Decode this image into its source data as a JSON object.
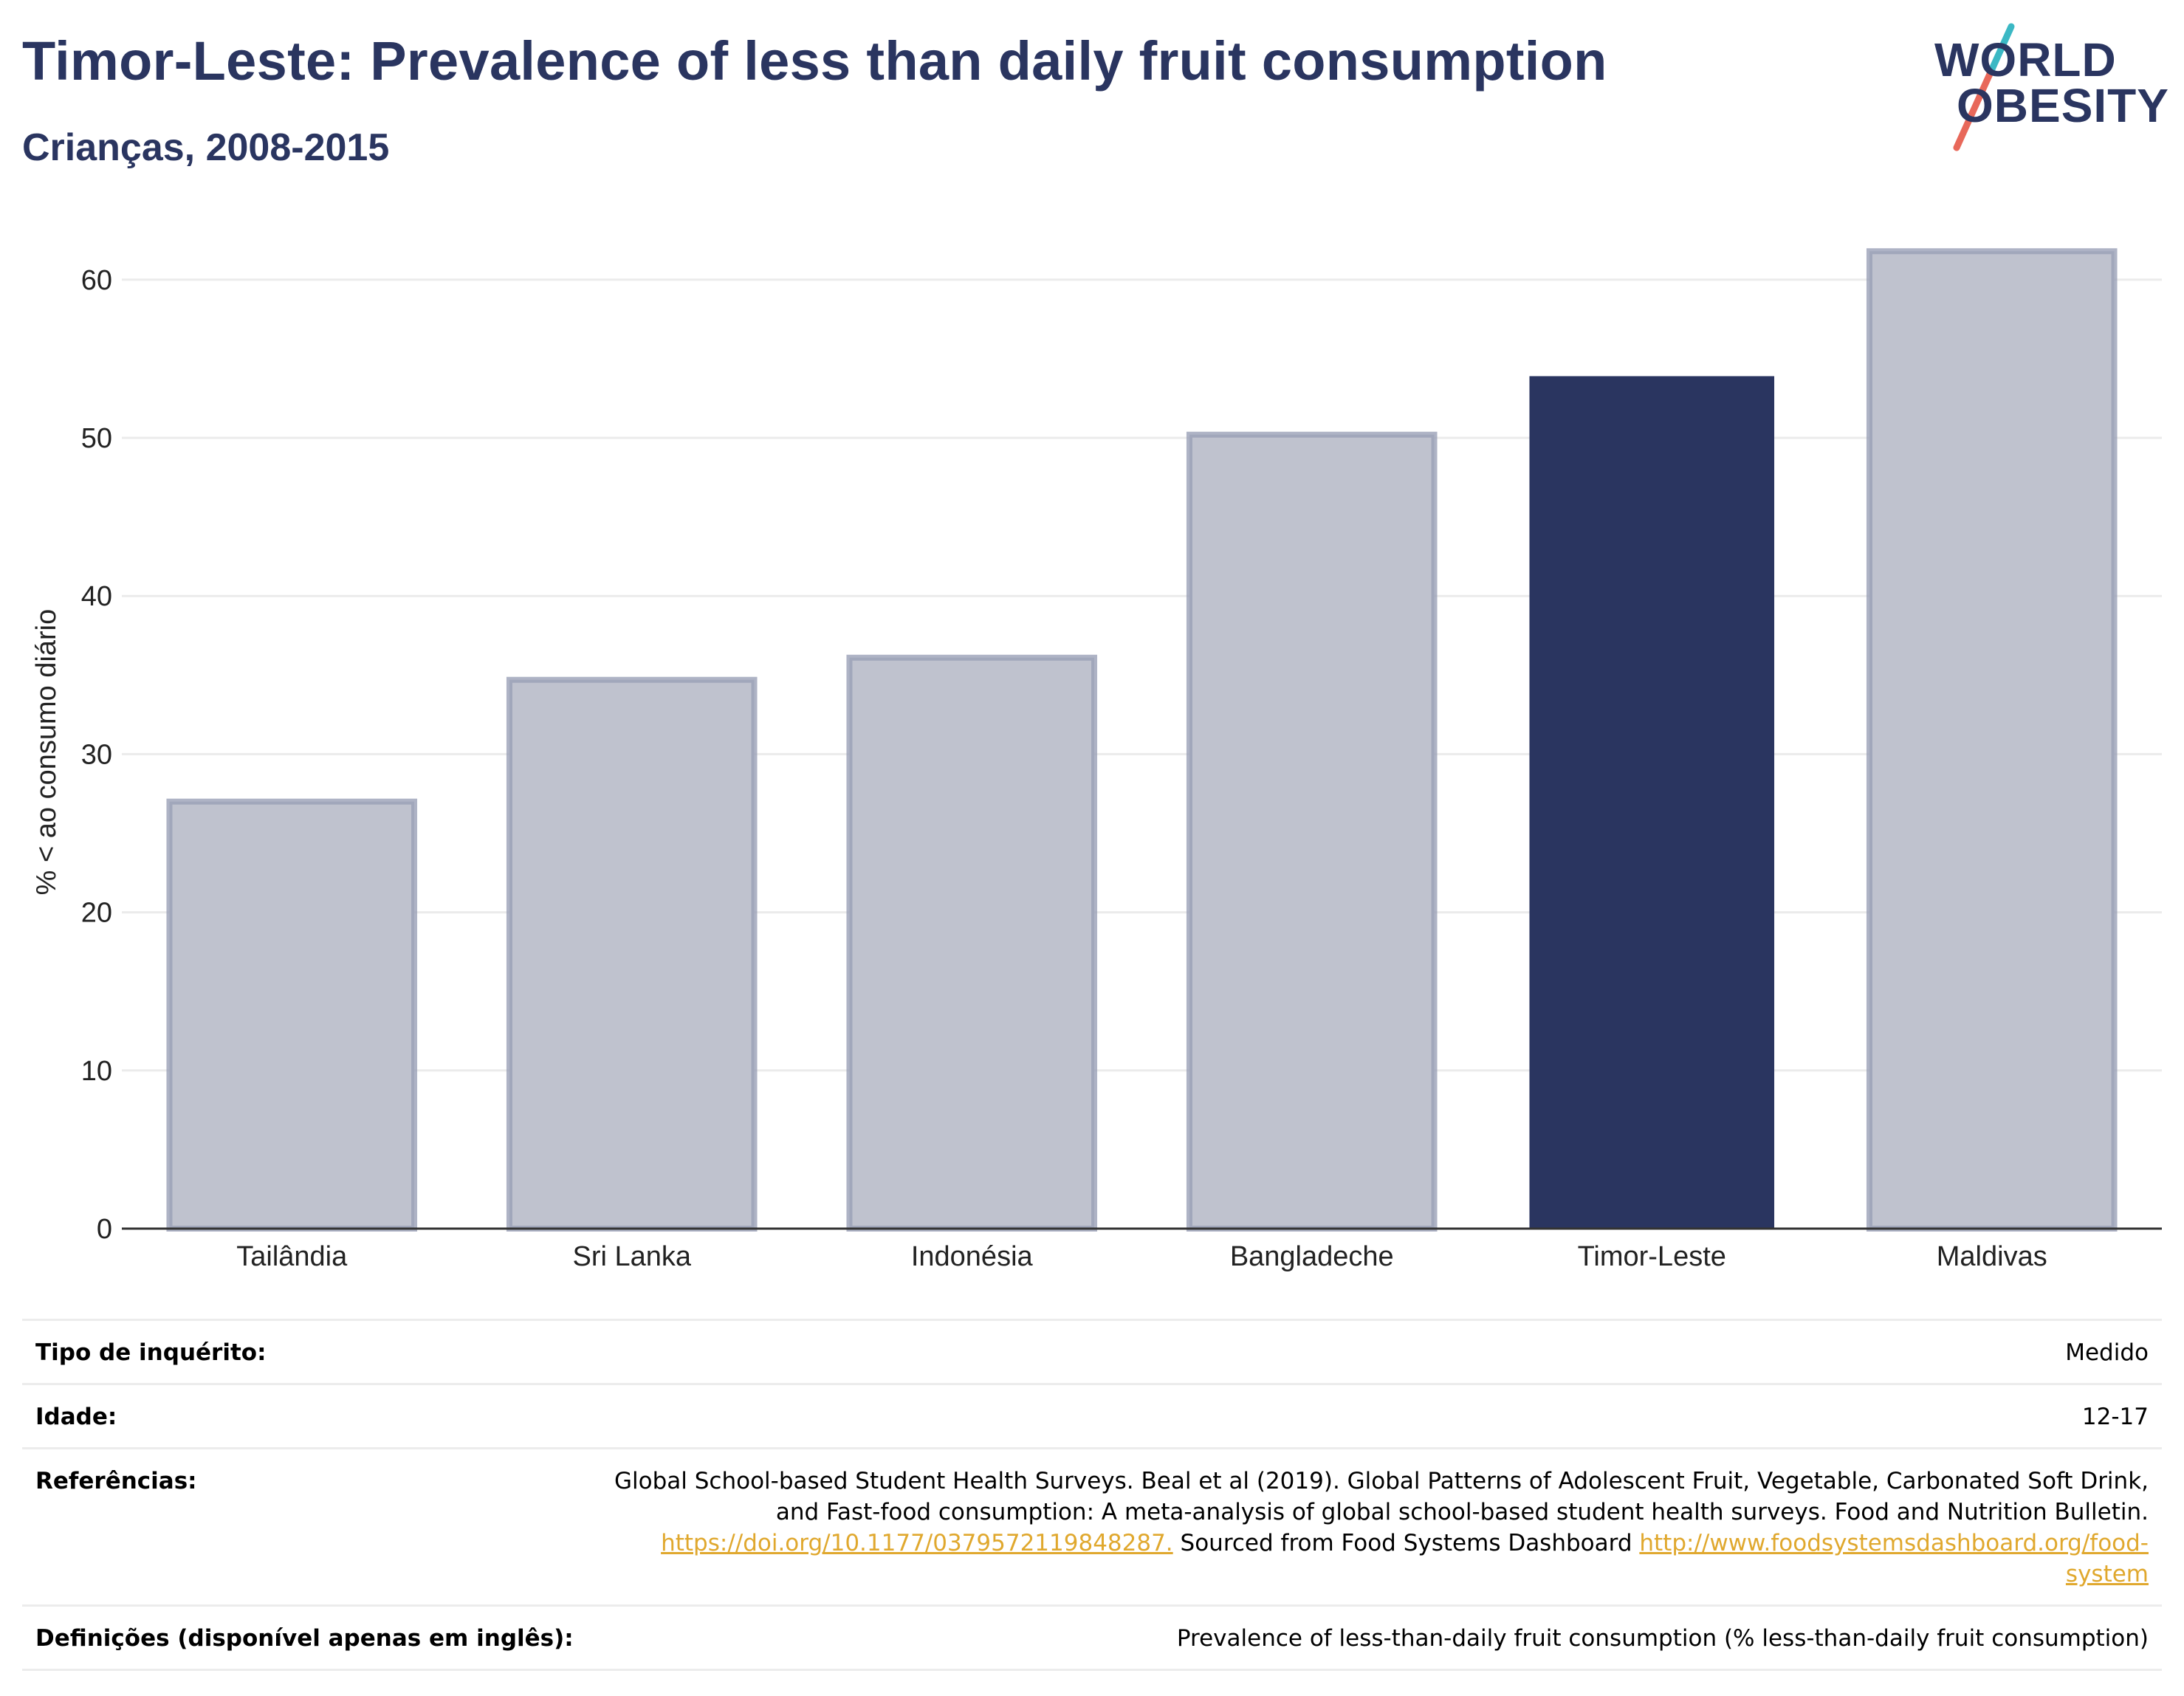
{
  "header": {
    "title": "Timor-Leste: Prevalence of less than daily fruit consumption",
    "subtitle": "Crianças, 2008-2015"
  },
  "logo": {
    "line1": "WORLD",
    "line2": "OBESITY",
    "colors": {
      "text": "#2a3560",
      "slash_top": "#3bb8c4",
      "slash_bottom": "#e8685a"
    }
  },
  "chart_data": {
    "type": "bar",
    "categories": [
      "Tailândia",
      "Sri Lanka",
      "Indonésia",
      "Bangladeche",
      "Timor-Leste",
      "Maldivas"
    ],
    "values": [
      27.0,
      34.7,
      36.1,
      50.2,
      53.9,
      61.8
    ],
    "highlight": "Timor-Leste",
    "ylabel": "% < ao consumo diário",
    "ylim": [
      0,
      64
    ],
    "yticks": [
      0,
      10,
      20,
      30,
      40,
      50,
      60
    ],
    "grid": true,
    "colors": {
      "highlight": "#2a3560",
      "other_fill": "#bfc2ce",
      "other_stroke": "#9aa0b7",
      "grid": "#ebebeb",
      "axis": "#333333"
    }
  },
  "info": {
    "rows": [
      {
        "key": "Tipo de inquérito:",
        "value": "Medido"
      },
      {
        "key": "Idade:",
        "value": "12-17"
      },
      {
        "key": "Referências:"
      },
      {
        "key": "Definições (disponível apenas em inglês):",
        "value": "Prevalence of less-than-daily fruit consumption (% less-than-daily fruit consumption)"
      }
    ],
    "reference": {
      "text1": "Global School-based Student Health Surveys. Beal et al (2019). Global Patterns of Adolescent Fruit, Vegetable, Carbonated Soft Drink,",
      "text2": "and Fast-food consumption: A meta-analysis of global school-based student health surveys. Food and Nutrition Bulletin.",
      "link1": "https://doi.org/10.1177/0379572119848287.",
      "text3": " Sourced from Food Systems Dashboard ",
      "link2a": "http://www.foodsystemsdashboard.org/food-",
      "link2b": "system"
    }
  }
}
